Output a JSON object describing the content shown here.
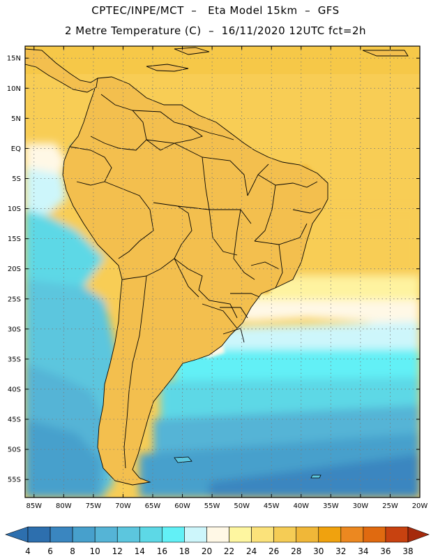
{
  "header": {
    "line1": "CPTEC/INPE/MCT  –   Eta Model 15km  –  GFS",
    "line2": "2 Metre Temperature (C)  –  16/11/2020 12UTC fct=2h"
  },
  "axes": {
    "lat_labels": [
      "15N",
      "10N",
      "5N",
      "EQ",
      "5S",
      "10S",
      "15S",
      "20S",
      "25S",
      "30S",
      "35S",
      "40S",
      "45S",
      "50S",
      "55S"
    ],
    "lat_values": [
      15,
      10,
      5,
      0,
      -5,
      -10,
      -15,
      -20,
      -25,
      -30,
      -35,
      -40,
      -45,
      -50,
      -55
    ],
    "lon_labels": [
      "85W",
      "80W",
      "75W",
      "70W",
      "65W",
      "60W",
      "55W",
      "50W",
      "45W",
      "40W",
      "35W",
      "30W",
      "25W",
      "20W"
    ],
    "lon_values": [
      -85,
      -80,
      -75,
      -70,
      -65,
      -60,
      -55,
      -50,
      -45,
      -40,
      -35,
      -30,
      -25,
      -20
    ],
    "lat_range": [
      -58,
      17
    ],
    "lon_range": [
      -86.5,
      -20
    ]
  },
  "colorbar": {
    "labels": [
      "4",
      "6",
      "8",
      "10",
      "12",
      "14",
      "16",
      "18",
      "20",
      "22",
      "24",
      "26",
      "28",
      "30",
      "32",
      "34",
      "36",
      "38"
    ],
    "colors": [
      "#2d6fae",
      "#3a86c0",
      "#47a0cc",
      "#55b4d6",
      "#5cc6de",
      "#5dd8e6",
      "#62f0f6",
      "#cdf6fb",
      "#fff8e6",
      "#fef6a0",
      "#fbe27a",
      "#f5cc55",
      "#f0b738",
      "#f0a20e",
      "#ec8820",
      "#e06a10",
      "#c84210",
      "#a52a0c"
    ]
  },
  "map": {
    "ocean_base_color": "#f8cd55",
    "land_color": "#f3bf4e"
  }
}
